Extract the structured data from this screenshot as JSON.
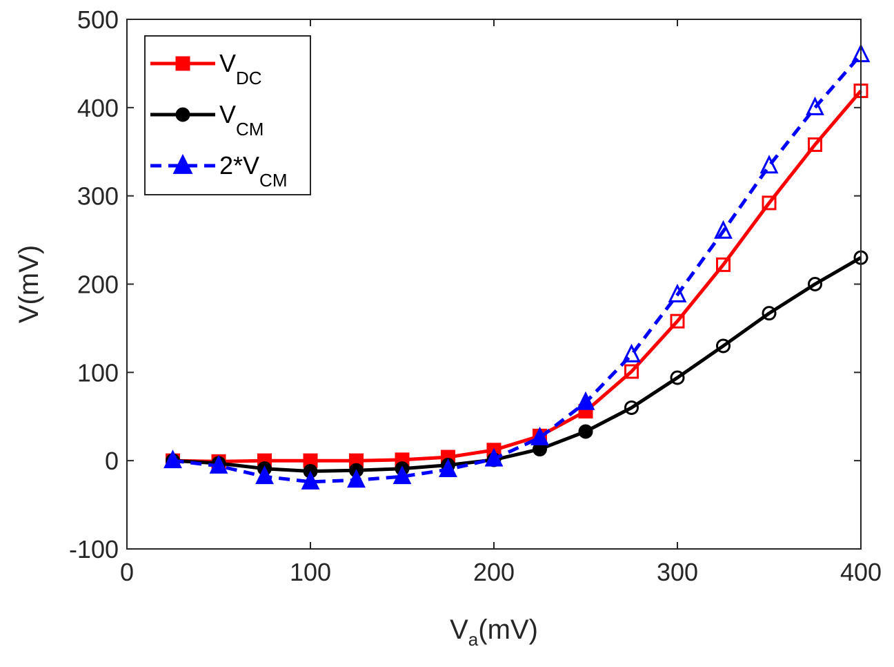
{
  "chart_data": {
    "type": "line",
    "title": "",
    "xlabel": {
      "main": "V",
      "sub": "a",
      "unit": "(mV)"
    },
    "ylabel": "V(mV)",
    "xlim": [
      0,
      400
    ],
    "ylim": [
      -100,
      500
    ],
    "xticks": [
      0,
      100,
      200,
      300,
      400
    ],
    "yticks": [
      -100,
      0,
      100,
      200,
      300,
      400,
      500
    ],
    "xtick_labels": [
      "0",
      "100",
      "200",
      "300",
      "400"
    ],
    "ytick_labels": [
      "-100",
      "0",
      "100",
      "200",
      "300",
      "400",
      "500"
    ],
    "grid": false,
    "legend_position": "top-left",
    "x": [
      25,
      50,
      75,
      100,
      125,
      150,
      175,
      200,
      225,
      250,
      275,
      300,
      325,
      350,
      375,
      400
    ],
    "series": [
      {
        "name": "V_DC",
        "label_main": "V",
        "label_sub": "DC",
        "color": "#ff0000",
        "line": "solid",
        "marker": "square",
        "values": [
          0,
          -1,
          0,
          0,
          0,
          1,
          4,
          12,
          28,
          56,
          101,
          158,
          222,
          292,
          358,
          419
        ]
      },
      {
        "name": "V_CM",
        "label_main": "V",
        "label_sub": "CM",
        "color": "#000000",
        "line": "solid",
        "marker": "circle",
        "values": [
          0,
          -3,
          -9,
          -12,
          -11,
          -9,
          -5,
          1,
          13,
          33,
          60,
          94,
          130,
          167,
          200,
          230
        ]
      },
      {
        "name": "2*V_CM",
        "label_main": "2*V",
        "label_sub": "CM",
        "color": "#0000ff",
        "line": "dashed",
        "marker": "triangle",
        "values": [
          0,
          -6,
          -18,
          -24,
          -22,
          -18,
          -10,
          2,
          26,
          66,
          120,
          188,
          260,
          334,
          400,
          460
        ]
      }
    ]
  }
}
